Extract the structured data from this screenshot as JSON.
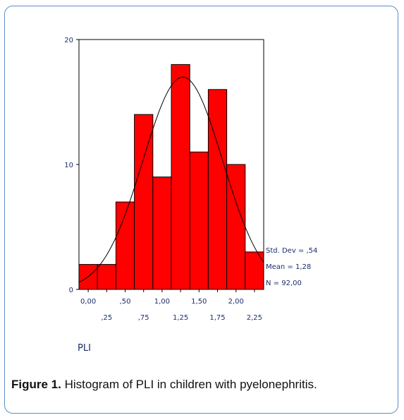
{
  "caption": {
    "label": "Figure 1.",
    "text": " Histogram of PLI in children with pyelonephritis."
  },
  "chart_data": {
    "type": "bar",
    "title": "",
    "xlabel": "PLI",
    "ylabel": "",
    "ylim": [
      0,
      20
    ],
    "xlim": [
      -0.125,
      2.375
    ],
    "bin_centers": [
      0.0,
      0.25,
      0.5,
      0.75,
      1.0,
      1.25,
      1.5,
      1.75,
      2.0,
      2.25
    ],
    "values": [
      2,
      2,
      7,
      14,
      9,
      18,
      11,
      16,
      10,
      3
    ],
    "bin_width": 0.25,
    "y_ticks": [
      {
        "value": 0,
        "label": "0"
      },
      {
        "value": 10,
        "label": "10"
      },
      {
        "value": 20,
        "label": "20"
      }
    ],
    "x_ticks_row1": [
      {
        "value": 0.0,
        "label": "0,00"
      },
      {
        "value": 0.5,
        "label": ",50"
      },
      {
        "value": 1.0,
        "label": "1,00"
      },
      {
        "value": 1.5,
        "label": "1,50"
      },
      {
        "value": 2.0,
        "label": "2,00"
      }
    ],
    "x_ticks_row2": [
      {
        "value": 0.25,
        "label": ",25"
      },
      {
        "value": 0.75,
        "label": ",75"
      },
      {
        "value": 1.25,
        "label": "1,25"
      },
      {
        "value": 1.75,
        "label": "1,75"
      },
      {
        "value": 2.25,
        "label": "2,25"
      }
    ],
    "stats": [
      "Std. Dev = ,54",
      "Mean = 1,28",
      "N = 92,00"
    ],
    "normal_curve": {
      "mean": 1.28,
      "sd": 0.54,
      "n": 92
    },
    "colors": {
      "bar": "#ff0000",
      "bar_edge": "#000000",
      "curve": "#000000",
      "text": "#1c2d6b",
      "frame": "#5b8fc9"
    }
  }
}
